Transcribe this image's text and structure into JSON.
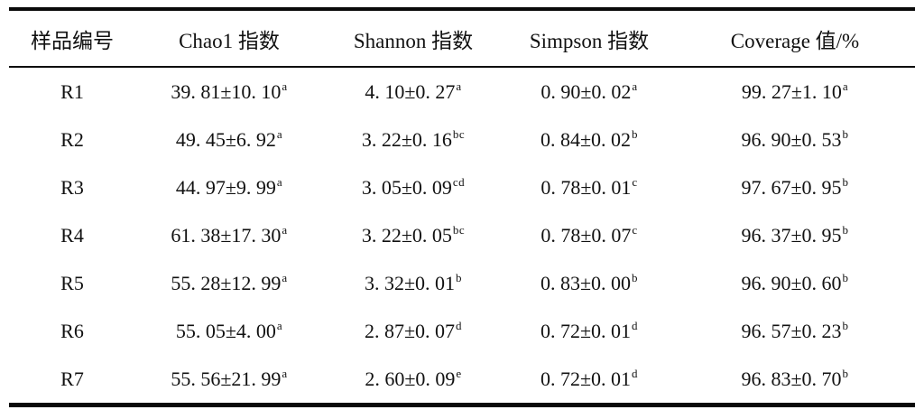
{
  "table": {
    "columns": [
      "样品编号",
      "Chao1 指数",
      "Shannon 指数",
      "Simpson 指数",
      "Coverage 值/%"
    ],
    "rows": [
      {
        "sample": "R1",
        "chao1": {
          "text": "39. 81±10. 10",
          "sup": "a"
        },
        "shannon": {
          "text": "4. 10±0. 27",
          "sup": "a"
        },
        "simpson": {
          "text": "0. 90±0. 02",
          "sup": "a"
        },
        "coverage": {
          "text": "99. 27±1. 10",
          "sup": "a"
        }
      },
      {
        "sample": "R2",
        "chao1": {
          "text": "49. 45±6. 92",
          "sup": "a"
        },
        "shannon": {
          "text": "3. 22±0. 16",
          "sup": "bc"
        },
        "simpson": {
          "text": "0. 84±0. 02",
          "sup": "b"
        },
        "coverage": {
          "text": "96. 90±0. 53",
          "sup": "b"
        }
      },
      {
        "sample": "R3",
        "chao1": {
          "text": "44. 97±9. 99",
          "sup": "a"
        },
        "shannon": {
          "text": "3. 05±0. 09",
          "sup": "cd"
        },
        "simpson": {
          "text": "0. 78±0. 01",
          "sup": "c"
        },
        "coverage": {
          "text": "97. 67±0. 95",
          "sup": "b"
        }
      },
      {
        "sample": "R4",
        "chao1": {
          "text": "61. 38±17. 30",
          "sup": "a"
        },
        "shannon": {
          "text": "3. 22±0. 05",
          "sup": "bc"
        },
        "simpson": {
          "text": "0. 78±0. 07",
          "sup": "c"
        },
        "coverage": {
          "text": "96. 37±0. 95",
          "sup": "b"
        }
      },
      {
        "sample": "R5",
        "chao1": {
          "text": "55. 28±12. 99",
          "sup": "a"
        },
        "shannon": {
          "text": "3. 32±0. 01",
          "sup": "b"
        },
        "simpson": {
          "text": "0. 83±0. 00",
          "sup": "b"
        },
        "coverage": {
          "text": "96. 90±0. 60",
          "sup": "b"
        }
      },
      {
        "sample": "R6",
        "chao1": {
          "text": "55. 05±4. 00",
          "sup": "a"
        },
        "shannon": {
          "text": "2. 87±0. 07",
          "sup": "d"
        },
        "simpson": {
          "text": "0. 72±0. 01",
          "sup": "d"
        },
        "coverage": {
          "text": "96. 57±0. 23",
          "sup": "b"
        }
      },
      {
        "sample": "R7",
        "chao1": {
          "text": "55. 56±21. 99",
          "sup": "a"
        },
        "shannon": {
          "text": "2. 60±0. 09",
          "sup": "e"
        },
        "simpson": {
          "text": "0. 72±0. 01",
          "sup": "d"
        },
        "coverage": {
          "text": "96. 83±0. 70",
          "sup": "b"
        }
      }
    ]
  },
  "chart_data": {
    "type": "table",
    "title": "",
    "columns": [
      "样品编号",
      "Chao1 指数",
      "Shannon 指数",
      "Simpson 指数",
      "Coverage 值/%"
    ],
    "categories": [
      "R1",
      "R2",
      "R3",
      "R4",
      "R5",
      "R6",
      "R7"
    ],
    "series": [
      {
        "name": "Chao1 指数",
        "mean": [
          39.81,
          49.45,
          44.97,
          61.38,
          55.28,
          55.05,
          55.56
        ],
        "sd": [
          10.1,
          6.92,
          9.99,
          17.3,
          12.99,
          4.0,
          21.99
        ],
        "sig": [
          "a",
          "a",
          "a",
          "a",
          "a",
          "a",
          "a"
        ]
      },
      {
        "name": "Shannon 指数",
        "mean": [
          4.1,
          3.22,
          3.05,
          3.22,
          3.32,
          2.87,
          2.6
        ],
        "sd": [
          0.27,
          0.16,
          0.09,
          0.05,
          0.01,
          0.07,
          0.09
        ],
        "sig": [
          "a",
          "bc",
          "cd",
          "bc",
          "b",
          "d",
          "e"
        ]
      },
      {
        "name": "Simpson 指数",
        "mean": [
          0.9,
          0.84,
          0.78,
          0.78,
          0.83,
          0.72,
          0.72
        ],
        "sd": [
          0.02,
          0.02,
          0.01,
          0.07,
          0.0,
          0.01,
          0.01
        ],
        "sig": [
          "a",
          "b",
          "c",
          "c",
          "b",
          "d",
          "d"
        ]
      },
      {
        "name": "Coverage 值/%",
        "mean": [
          99.27,
          96.9,
          97.67,
          96.37,
          96.9,
          96.57,
          96.83
        ],
        "sd": [
          1.1,
          0.53,
          0.95,
          0.95,
          0.6,
          0.23,
          0.7
        ],
        "sig": [
          "a",
          "b",
          "b",
          "b",
          "b",
          "b",
          "b"
        ]
      }
    ],
    "colors": {
      "text": "#111111",
      "rule": "#0a0a0a",
      "background": "#ffffff"
    }
  }
}
